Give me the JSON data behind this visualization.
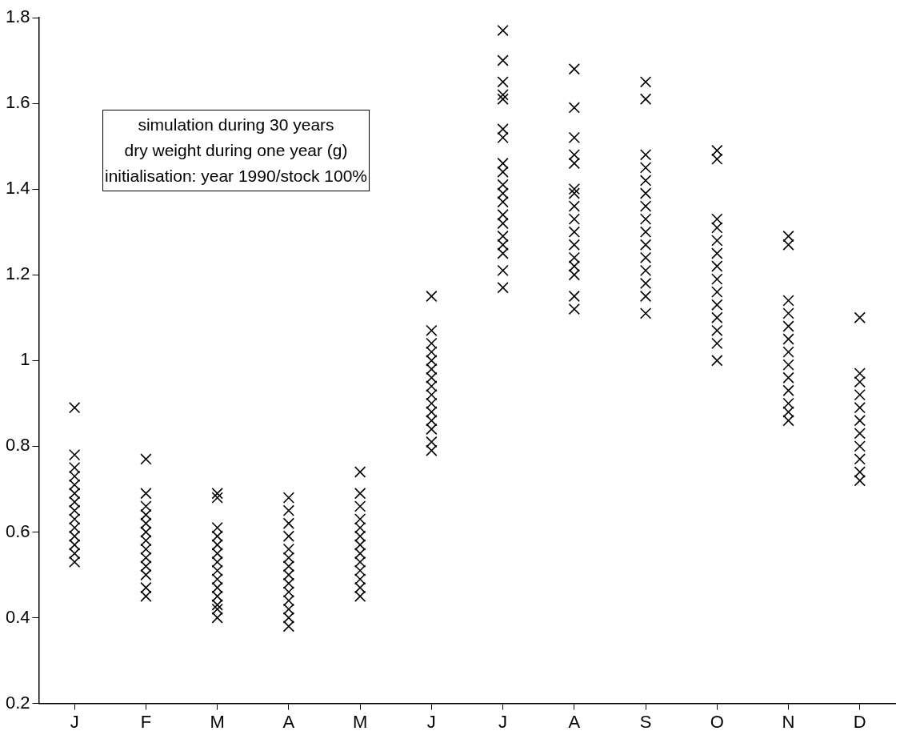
{
  "chart_data": {
    "type": "scatter",
    "annotations": [
      "simulation during 30 years",
      "dry weight during one year (g)",
      "initialisation: year 1990/stock 100%"
    ],
    "marker": "cross",
    "grid": false,
    "categories": [
      "J",
      "F",
      "M",
      "A",
      "M",
      "J",
      "J",
      "A",
      "S",
      "O",
      "N",
      "D"
    ],
    "ylim": [
      0.2,
      1.8
    ],
    "yticks": [
      0.2,
      0.4,
      0.6,
      0.8,
      1,
      1.2,
      1.4,
      1.6,
      1.8
    ],
    "series": [
      {
        "color": "#000000",
        "values": [
          0.89,
          0.77,
          0.69,
          0.68,
          0.74,
          1.15,
          1.77,
          1.68,
          1.65,
          1.49,
          1.29,
          1.1
        ]
      },
      {
        "color": "#000000",
        "values": [
          0.78,
          0.69,
          0.68,
          0.65,
          0.69,
          1.07,
          1.7,
          1.59,
          1.61,
          1.47,
          1.27,
          0.97
        ]
      },
      {
        "color": "#000000",
        "values": [
          0.75,
          0.66,
          0.61,
          0.62,
          0.66,
          1.04,
          1.65,
          1.52,
          1.48,
          1.33,
          1.14,
          0.95
        ]
      },
      {
        "color": "#000000",
        "values": [
          0.73,
          0.64,
          0.59,
          0.59,
          0.63,
          1.02,
          1.62,
          1.48,
          1.45,
          1.31,
          1.11,
          0.92
        ]
      },
      {
        "color": "#000000",
        "values": [
          0.71,
          0.62,
          0.57,
          0.56,
          0.61,
          1,
          1.61,
          1.46,
          1.42,
          1.28,
          1.08,
          0.89
        ]
      },
      {
        "color": "#000000",
        "values": [
          0.69,
          0.6,
          0.55,
          0.54,
          0.59,
          0.98,
          1.54,
          1.4,
          1.39,
          1.25,
          1.05,
          0.86
        ]
      },
      {
        "color": "#000000",
        "values": [
          0.67,
          0.58,
          0.53,
          0.52,
          0.57,
          0.96,
          1.52,
          1.39,
          1.36,
          1.22,
          1.02,
          0.83
        ]
      },
      {
        "color": "#000000",
        "values": [
          0.65,
          0.56,
          0.51,
          0.5,
          0.55,
          0.94,
          1.46,
          1.36,
          1.33,
          1.19,
          0.99,
          0.8
        ]
      },
      {
        "color": "#000000",
        "values": [
          0.63,
          0.54,
          0.49,
          0.48,
          0.53,
          0.92,
          1.44,
          1.33,
          1.3,
          1.16,
          0.96,
          0.77
        ]
      },
      {
        "color": "#000000",
        "values": [
          0.61,
          0.52,
          0.47,
          0.46,
          0.51,
          0.9,
          1.41,
          1.3,
          1.27,
          1.13,
          0.93,
          0.74
        ]
      },
      {
        "color": "#000000",
        "values": [
          0.59,
          0.5,
          0.45,
          0.44,
          0.49,
          0.88,
          1.39,
          1.27,
          1.24,
          1.1,
          0.9,
          0.72
        ]
      },
      {
        "color": "#000000",
        "values": [
          0.57,
          0.47,
          0.43,
          0.42,
          0.47,
          0.86,
          1.37,
          1.24,
          1.21,
          1.07,
          0.88,
          null
        ]
      },
      {
        "color": "#000000",
        "values": [
          0.55,
          0.45,
          0.42,
          0.4,
          0.45,
          0.84,
          1.34,
          1.22,
          1.18,
          1.04,
          0.86,
          null
        ]
      },
      {
        "color": "#000000",
        "values": [
          0.53,
          null,
          0.4,
          0.38,
          null,
          0.81,
          1.32,
          1.2,
          1.15,
          1,
          null,
          null
        ]
      },
      {
        "color": "#000000",
        "values": [
          null,
          null,
          null,
          null,
          null,
          0.79,
          1.29,
          1.15,
          1.11,
          null,
          null,
          null
        ]
      },
      {
        "color": "#000000",
        "values": [
          null,
          null,
          null,
          null,
          null,
          null,
          1.27,
          1.12,
          null,
          null,
          null,
          null
        ]
      },
      {
        "color": "#000000",
        "values": [
          null,
          null,
          null,
          null,
          null,
          null,
          1.25,
          null,
          null,
          null,
          null,
          null
        ]
      },
      {
        "color": "#000000",
        "values": [
          null,
          null,
          null,
          null,
          null,
          null,
          1.21,
          null,
          null,
          null,
          null,
          null
        ]
      },
      {
        "color": "#000000",
        "values": [
          null,
          null,
          null,
          null,
          null,
          null,
          1.17,
          null,
          null,
          null,
          null,
          null
        ]
      }
    ]
  }
}
